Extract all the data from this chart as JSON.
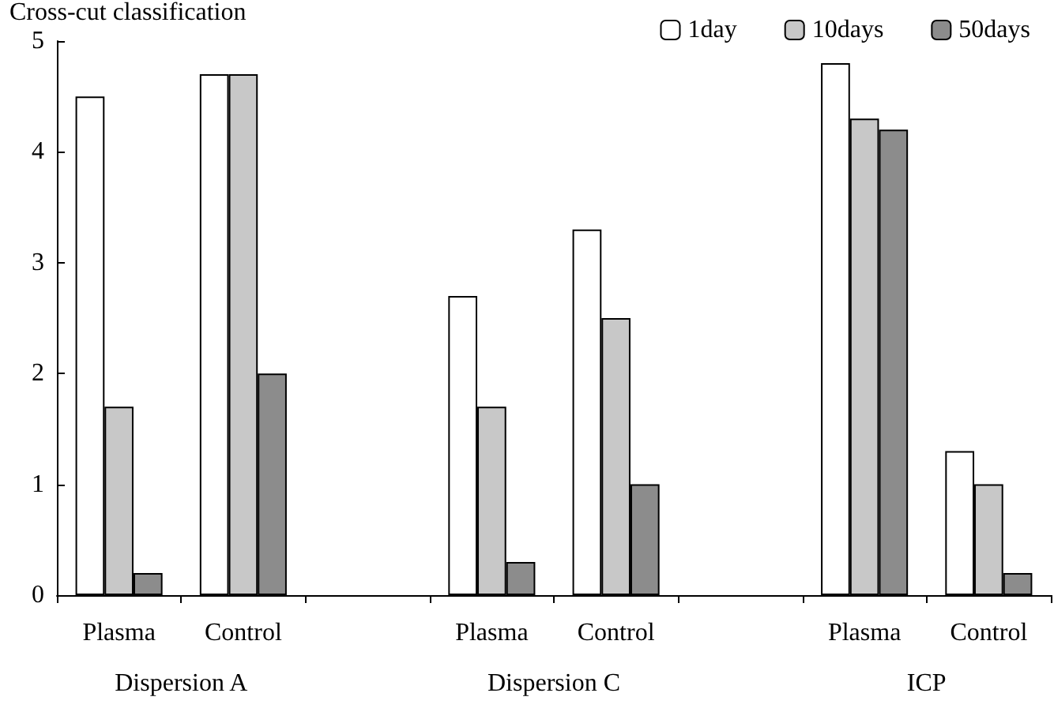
{
  "chart_data": {
    "type": "bar",
    "ylabel": "Cross-cut classification",
    "categories": [
      "Plasma",
      "Control",
      null,
      "Plasma",
      "Control",
      null,
      "Plasma",
      "Control"
    ],
    "series": [
      {
        "name": "1day",
        "color": "#ffffff",
        "values": [
          4.5,
          4.7,
          null,
          2.7,
          3.3,
          null,
          4.8,
          1.3
        ]
      },
      {
        "name": "10days",
        "color": "#c8c8c8",
        "values": [
          1.7,
          4.7,
          null,
          1.7,
          2.5,
          null,
          4.3,
          1.0
        ]
      },
      {
        "name": "50days",
        "color": "#8c8c8c",
        "values": [
          0.2,
          2.0,
          null,
          0.3,
          1.0,
          null,
          4.2,
          0.2
        ]
      }
    ],
    "ylim": [
      0,
      5
    ],
    "yticks": [
      0,
      1,
      2,
      3,
      4,
      5
    ],
    "grid": false,
    "legend": "top right",
    "annotations": [
      "Dispersion A",
      "Dispersion C",
      "ICP"
    ]
  }
}
